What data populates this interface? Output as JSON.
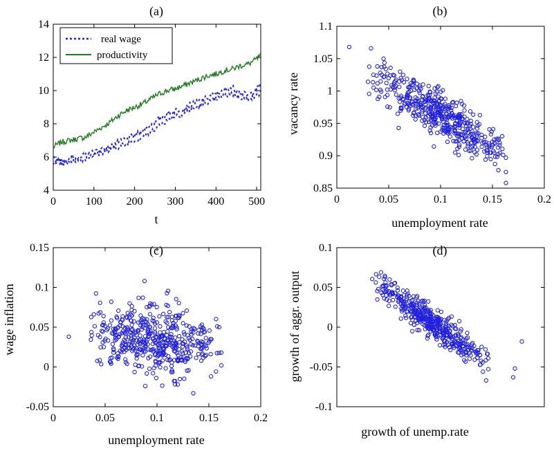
{
  "colors": {
    "series_blue": "#2222dd",
    "series_green": "#1f7a1f",
    "axis": "#000000"
  },
  "chart_data": [
    {
      "id": "a",
      "type": "line",
      "title": "(a)",
      "xlabel": "t",
      "ylabel": "",
      "xlim": [
        0,
        510
      ],
      "ylim": [
        4,
        14
      ],
      "xticks": [
        0,
        100,
        200,
        300,
        400,
        500
      ],
      "yticks": [
        4,
        6,
        8,
        10,
        12,
        14
      ],
      "legend_position": "top-left",
      "series": [
        {
          "name": "real wage",
          "style": "dotted",
          "color": "#2222dd",
          "x": [
            0,
            20,
            40,
            60,
            80,
            100,
            120,
            140,
            160,
            180,
            200,
            220,
            240,
            260,
            280,
            300,
            320,
            340,
            360,
            380,
            400,
            420,
            440,
            460,
            480,
            500,
            510
          ],
          "y": [
            5.9,
            5.8,
            5.9,
            6.0,
            6.1,
            6.3,
            6.5,
            6.6,
            6.9,
            7.1,
            7.3,
            7.6,
            7.9,
            8.3,
            8.6,
            8.8,
            8.9,
            9.2,
            9.4,
            9.6,
            9.8,
            10.0,
            10.2,
            9.9,
            9.7,
            10.1,
            10.3
          ],
          "lower_band": [
            5.6,
            5.6,
            5.7,
            5.8,
            5.9,
            6.1,
            6.3,
            6.4,
            6.6,
            6.8,
            7.0,
            7.2,
            7.5,
            7.9,
            8.2,
            8.5,
            8.6,
            8.9,
            9.1,
            9.3,
            9.5,
            9.7,
            9.8,
            9.6,
            9.5,
            9.7,
            9.9
          ]
        },
        {
          "name": "productivity",
          "style": "solid",
          "color": "#1f7a1f",
          "x": [
            0,
            20,
            40,
            60,
            80,
            100,
            120,
            140,
            160,
            180,
            200,
            220,
            240,
            260,
            280,
            300,
            320,
            340,
            360,
            380,
            400,
            420,
            440,
            460,
            480,
            500,
            510
          ],
          "y": [
            6.6,
            6.9,
            7.0,
            7.1,
            7.2,
            7.5,
            7.8,
            8.1,
            8.5,
            8.8,
            9.0,
            9.2,
            9.5,
            9.8,
            10.0,
            10.1,
            10.3,
            10.5,
            10.7,
            10.9,
            11.0,
            11.2,
            11.3,
            11.5,
            11.6,
            11.9,
            12.1
          ]
        }
      ]
    },
    {
      "id": "b",
      "type": "scatter",
      "title": "(b)",
      "xlabel": "unemployment rate",
      "ylabel": "vacancy rate",
      "xlim": [
        0,
        0.2
      ],
      "ylim": [
        0.85,
        1.1
      ],
      "xticks": [
        0,
        0.05,
        0.1,
        0.15,
        0.2
      ],
      "xtick_labels": [
        "0",
        "0.05",
        "0.1",
        "0.15",
        "0.2"
      ],
      "yticks": [
        0.85,
        0.9,
        0.95,
        1,
        1.05,
        1.1
      ],
      "ytick_labels": [
        "0.85",
        "0.9",
        "0.95",
        "1",
        "1.05",
        "1.1"
      ],
      "cloud": {
        "count": 480,
        "x_min": 0.03,
        "x_max": 0.165,
        "relation": {
          "intercept": 1.055,
          "slope": -0.93
        },
        "spread": 0.018
      },
      "highlight_points": [
        [
          0.012,
          1.068
        ],
        [
          0.033,
          1.066
        ],
        [
          0.045,
          1.05
        ],
        [
          0.163,
          0.858
        ],
        [
          0.163,
          0.875
        ],
        [
          0.163,
          0.897
        ]
      ]
    },
    {
      "id": "c",
      "type": "scatter",
      "title": "(c)",
      "xlabel": "unemployment rate",
      "ylabel": "wage inflation",
      "xlim": [
        0,
        0.2
      ],
      "ylim": [
        -0.05,
        0.15
      ],
      "xticks": [
        0,
        0.05,
        0.1,
        0.15,
        0.2
      ],
      "xtick_labels": [
        "0",
        "0.05",
        "0.1",
        "0.15",
        "0.2"
      ],
      "yticks": [
        -0.05,
        0,
        0.05,
        0.1,
        0.15
      ],
      "ytick_labels": [
        "-0.05",
        "0",
        "0.05",
        "0.1",
        "0.15"
      ],
      "cloud": {
        "count": 480,
        "x_min": 0.035,
        "x_max": 0.16,
        "relation": {
          "intercept": 0.045,
          "slope": -0.1
        },
        "spread": 0.022
      },
      "highlight_points": [
        [
          0.015,
          0.038
        ],
        [
          0.088,
          0.108
        ],
        [
          0.135,
          -0.033
        ],
        [
          0.12,
          -0.022
        ],
        [
          0.16,
          0.05
        ],
        [
          0.162,
          0.018
        ],
        [
          0.162,
          0.002
        ]
      ]
    },
    {
      "id": "d",
      "type": "scatter",
      "title": "(d)",
      "xlabel": "growth of unemp.rate",
      "ylabel": "growth of aggr. output",
      "xlim": [
        -0.6,
        0.6
      ],
      "ylim": [
        -0.1,
        0.1
      ],
      "xticks": [],
      "yticks": [
        -0.1,
        -0.05,
        0,
        0.05,
        0.1
      ],
      "ytick_labels": [
        "-0.1",
        "-0.05",
        "0",
        "0.05",
        "0.1"
      ],
      "cloud": {
        "count": 460,
        "x_min": -0.4,
        "x_max": 0.28,
        "relation": {
          "intercept": -0.002,
          "slope": -0.16
        },
        "spread": 0.009
      },
      "highlight_points": [
        [
          0.47,
          -0.018
        ],
        [
          0.43,
          -0.052
        ],
        [
          0.42,
          -0.063
        ],
        [
          0.26,
          -0.028
        ],
        [
          -0.36,
          0.048
        ]
      ]
    }
  ]
}
